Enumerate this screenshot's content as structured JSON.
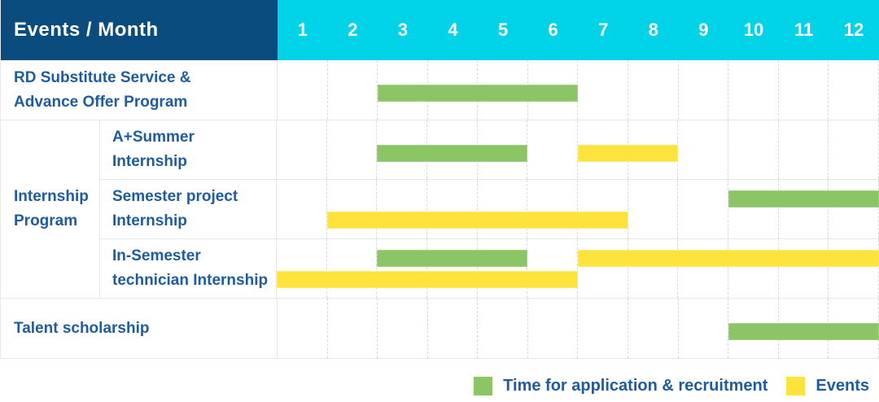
{
  "header": {
    "label": "Events / Month",
    "months": [
      "1",
      "2",
      "3",
      "4",
      "5",
      "6",
      "7",
      "8",
      "9",
      "10",
      "11",
      "12"
    ]
  },
  "rows": {
    "r1": {
      "line1": "RD Substitute Service &",
      "line2": "Advance Offer Program"
    },
    "group": {
      "line1": "Internship",
      "line2": "Program"
    },
    "r2": {
      "line1": "A+Summer",
      "line2": "Internship"
    },
    "r3": {
      "line1": "Semester project",
      "line2": "Internship"
    },
    "r4": {
      "line1": "In-Semester",
      "line2": "technician Internship"
    },
    "r5": {
      "line1": "Talent scholarship"
    }
  },
  "legend": {
    "items": [
      {
        "swatch": "green",
        "label": "Time for application & recruitment"
      },
      {
        "swatch": "yellow",
        "label": "Events"
      }
    ]
  },
  "colors": {
    "header_bg": "#0B4C7E",
    "month_header_bg": "#00D3E8",
    "label_text": "#1D5C9E",
    "application_green": "#8CC565",
    "event_yellow": "#FFE33D",
    "grid_line": "#E6E6E6"
  },
  "chart_data": {
    "type": "gantt",
    "title": "Events / Month",
    "x_unit": "month",
    "x_range": [
      1,
      12
    ],
    "x_ticks": [
      "1",
      "2",
      "3",
      "4",
      "5",
      "6",
      "7",
      "8",
      "9",
      "10",
      "11",
      "12"
    ],
    "legend": {
      "green": "Time for application & recruitment",
      "yellow": "Events"
    },
    "rows": [
      {
        "group": null,
        "label": "RD Substitute Service & Advance Offer Program",
        "bars": [
          {
            "kind": "application",
            "color": "green",
            "start": 3,
            "end": 6,
            "line": 0
          }
        ]
      },
      {
        "group": "Internship Program",
        "label": "A+Summer Internship",
        "bars": [
          {
            "kind": "application",
            "color": "green",
            "start": 3,
            "end": 5,
            "line": 0
          },
          {
            "kind": "event",
            "color": "yellow",
            "start": 7,
            "end": 8,
            "line": 0
          }
        ]
      },
      {
        "group": "Internship Program",
        "label": "Semester project Internship",
        "bars": [
          {
            "kind": "application",
            "color": "green",
            "start": 10,
            "end": 12,
            "line": 0
          },
          {
            "kind": "event",
            "color": "yellow",
            "start": 2,
            "end": 7,
            "line": 1
          }
        ]
      },
      {
        "group": "Internship Program",
        "label": "In-Semester technician Internship",
        "bars": [
          {
            "kind": "application",
            "color": "green",
            "start": 3,
            "end": 5,
            "line": 0
          },
          {
            "kind": "event",
            "color": "yellow",
            "start": 7,
            "end": 12,
            "line": 0
          },
          {
            "kind": "event",
            "color": "yellow",
            "start": 1,
            "end": 6,
            "line": 1
          }
        ]
      },
      {
        "group": null,
        "label": "Talent scholarship",
        "bars": [
          {
            "kind": "application",
            "color": "green",
            "start": 10,
            "end": 12,
            "line": 0
          }
        ]
      }
    ]
  }
}
